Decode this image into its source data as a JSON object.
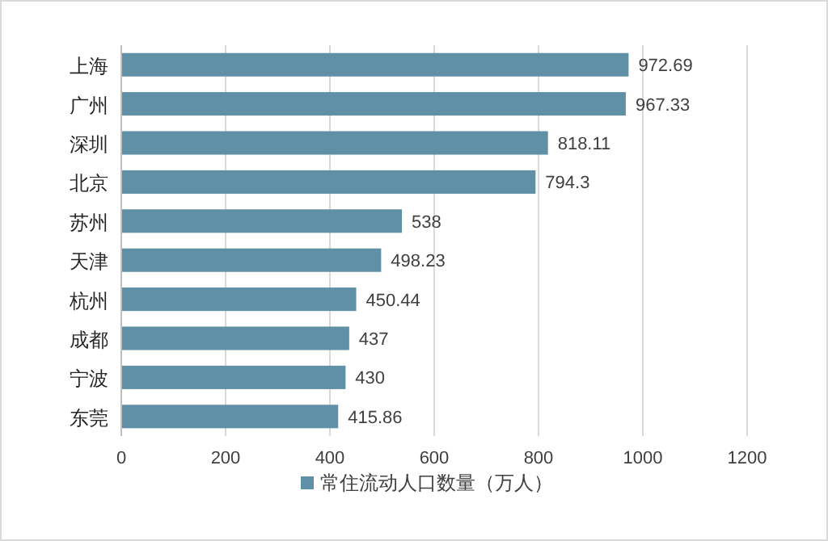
{
  "chart_data": {
    "type": "bar",
    "orientation": "horizontal",
    "categories": [
      "上海",
      "广州",
      "深圳",
      "北京",
      "苏州",
      "天津",
      "杭州",
      "成都",
      "宁波",
      "东莞"
    ],
    "series": [
      {
        "name": "常住流动人口数量（万人）",
        "color": "#5f90a6",
        "values": [
          972.69,
          967.33,
          818.11,
          794.3,
          538,
          498.23,
          450.44,
          437,
          430,
          415.86
        ]
      }
    ],
    "xlim": [
      0,
      1200
    ],
    "xticks": [
      0,
      200,
      400,
      600,
      800,
      1000,
      1200
    ],
    "grid": "x",
    "legend": "bottom",
    "data_labels": true
  }
}
